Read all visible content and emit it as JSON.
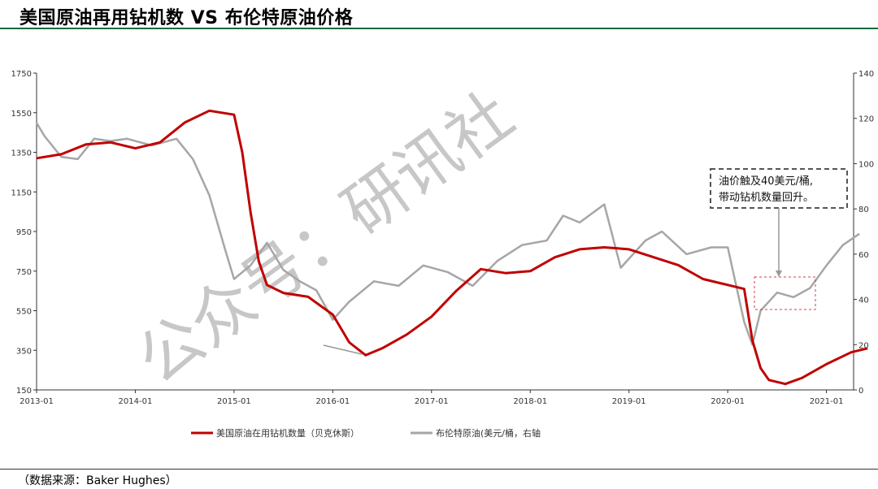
{
  "title": "美国原油再用钻机数 VS 布伦特原油价格",
  "source": "（数据来源：Baker Hughes）",
  "watermark": "公众号：研讯社",
  "annotation": {
    "line1": "油价触及40美元/桶,",
    "line2": "带动钻机数量回升。"
  },
  "colors": {
    "rig": "#c00000",
    "brent": "#a6a6a6",
    "title_rule": "#0f6b3a"
  },
  "chart_data": {
    "type": "line",
    "x_ticks": [
      "2013-01",
      "2014-01",
      "2015-01",
      "2016-01",
      "2017-01",
      "2018-01",
      "2019-01",
      "2020-01",
      "2021-01"
    ],
    "y_left": {
      "ticks": [
        150,
        350,
        550,
        750,
        950,
        1150,
        1350,
        1550,
        1750
      ],
      "lim": [
        150,
        1750
      ]
    },
    "y_right": {
      "ticks": [
        0,
        20,
        40,
        60,
        80,
        100,
        120,
        140
      ],
      "lim": [
        0,
        140
      ]
    },
    "series": [
      {
        "name": "美国原油在用钻机数量（贝克休斯）",
        "axis": "left",
        "points": [
          [
            "2013-01",
            1320
          ],
          [
            "2013-04",
            1340
          ],
          [
            "2013-07",
            1390
          ],
          [
            "2013-10",
            1400
          ],
          [
            "2014-01",
            1370
          ],
          [
            "2014-04",
            1400
          ],
          [
            "2014-07",
            1500
          ],
          [
            "2014-10",
            1560
          ],
          [
            "2015-01",
            1540
          ],
          [
            "2015-02",
            1350
          ],
          [
            "2015-03",
            1050
          ],
          [
            "2015-04",
            800
          ],
          [
            "2015-05",
            680
          ],
          [
            "2015-07",
            640
          ],
          [
            "2015-10",
            620
          ],
          [
            "2016-01",
            530
          ],
          [
            "2016-03",
            390
          ],
          [
            "2016-05",
            325
          ],
          [
            "2016-07",
            360
          ],
          [
            "2016-10",
            430
          ],
          [
            "2017-01",
            520
          ],
          [
            "2017-04",
            650
          ],
          [
            "2017-07",
            760
          ],
          [
            "2017-10",
            740
          ],
          [
            "2018-01",
            750
          ],
          [
            "2018-04",
            820
          ],
          [
            "2018-07",
            860
          ],
          [
            "2018-10",
            870
          ],
          [
            "2019-01",
            860
          ],
          [
            "2019-04",
            820
          ],
          [
            "2019-07",
            780
          ],
          [
            "2019-10",
            710
          ],
          [
            "2020-01",
            680
          ],
          [
            "2020-03",
            660
          ],
          [
            "2020-04",
            400
          ],
          [
            "2020-05",
            260
          ],
          [
            "2020-06",
            200
          ],
          [
            "2020-08",
            180
          ],
          [
            "2020-10",
            210
          ],
          [
            "2021-01",
            280
          ],
          [
            "2021-04",
            340
          ],
          [
            "2021-06",
            360
          ]
        ]
      },
      {
        "name": "布伦特原油(美元/桶，右轴",
        "axis": "right",
        "points": [
          [
            "2013-01",
            118
          ],
          [
            "2013-02",
            112
          ],
          [
            "2013-04",
            103
          ],
          [
            "2013-06",
            102
          ],
          [
            "2013-08",
            111
          ],
          [
            "2013-10",
            110
          ],
          [
            "2013-12",
            111
          ],
          [
            "2014-03",
            108
          ],
          [
            "2014-06",
            111
          ],
          [
            "2014-08",
            102
          ],
          [
            "2014-10",
            86
          ],
          [
            "2014-12",
            61
          ],
          [
            "2015-01",
            49
          ],
          [
            "2015-03",
            55
          ],
          [
            "2015-05",
            65
          ],
          [
            "2015-07",
            53
          ],
          [
            "2015-09",
            48
          ],
          [
            "2015-11",
            44
          ],
          [
            "2016-01",
            31
          ],
          [
            "2016-03",
            39
          ],
          [
            "2016-06",
            48
          ],
          [
            "2016-09",
            46
          ],
          [
            "2016-12",
            55
          ],
          [
            "2017-03",
            52
          ],
          [
            "2017-06",
            46
          ],
          [
            "2017-09",
            57
          ],
          [
            "2017-12",
            64
          ],
          [
            "2018-03",
            66
          ],
          [
            "2018-05",
            77
          ],
          [
            "2018-07",
            74
          ],
          [
            "2018-10",
            82
          ],
          [
            "2018-12",
            54
          ],
          [
            "2019-03",
            66
          ],
          [
            "2019-05",
            70
          ],
          [
            "2019-08",
            60
          ],
          [
            "2019-11",
            63
          ],
          [
            "2020-01",
            63
          ],
          [
            "2020-03",
            30
          ],
          [
            "2020-04",
            20
          ],
          [
            "2020-05",
            35
          ],
          [
            "2020-07",
            43
          ],
          [
            "2020-09",
            41
          ],
          [
            "2020-11",
            45
          ],
          [
            "2021-01",
            55
          ],
          [
            "2021-03",
            64
          ],
          [
            "2021-05",
            69
          ]
        ]
      }
    ],
    "legend_position": "bottom",
    "grid": false
  }
}
